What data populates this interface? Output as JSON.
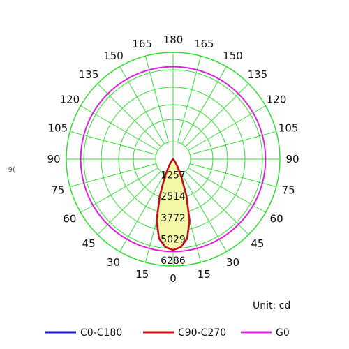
{
  "chart_data": {
    "type": "polar",
    "unit_label": "Unit: cd",
    "angle_labels": {
      "right": [
        "0",
        "15",
        "30",
        "45",
        "60",
        "75",
        "90",
        "105",
        "120",
        "135",
        "150",
        "165",
        "180"
      ],
      "left": [
        "15",
        "30",
        "45",
        "60",
        "75",
        "90",
        "105",
        "120",
        "135",
        "150",
        "165"
      ]
    },
    "stray_label": "-9(",
    "radial_ticks": [
      "1257",
      "2514",
      "3772",
      "5029",
      "6286"
    ],
    "rmax": 6286,
    "grid": true,
    "legend_position": "bottom",
    "series": [
      {
        "name": "C0-C180",
        "color": "#1a1acc",
        "angles": [
          0,
          5,
          10,
          15,
          20,
          25,
          30,
          35,
          40,
          45,
          50
        ],
        "values": [
          5350,
          5200,
          4750,
          3750,
          2300,
          1150,
          550,
          250,
          100,
          40,
          0
        ]
      },
      {
        "name": "C90-C270",
        "color": "#cc1111",
        "angles": [
          0,
          5,
          10,
          15,
          20,
          25,
          30,
          35,
          40,
          45,
          50
        ],
        "values": [
          5350,
          5200,
          4750,
          3750,
          2300,
          1150,
          550,
          250,
          100,
          40,
          0
        ]
      },
      {
        "name": "G0",
        "color": "#dd22dd",
        "constant_value": 5440
      }
    ],
    "colors": {
      "grid": "#33dd33",
      "fill": "#f4f9a8"
    }
  }
}
